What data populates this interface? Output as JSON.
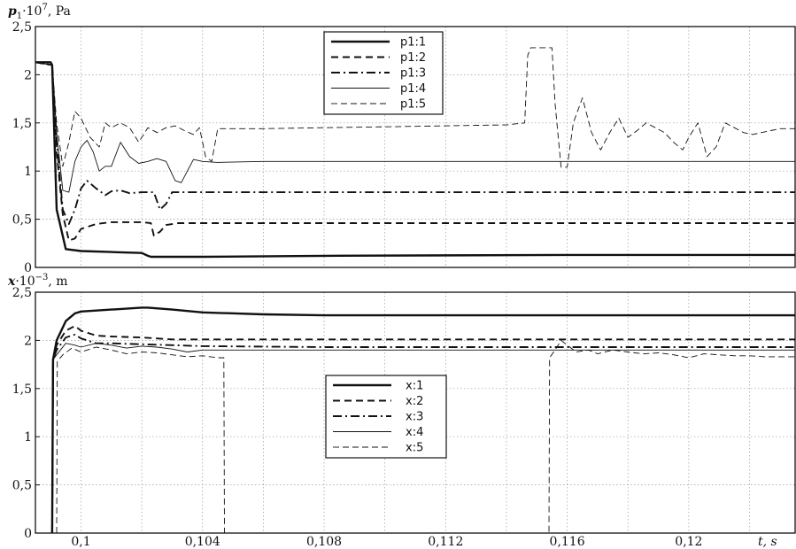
{
  "chart_data": [
    {
      "type": "line",
      "ylabel_var": "p",
      "ylabel_sub": "1",
      "ylabel_rest": "·10",
      "ylabel_exp": "7",
      "ylabel_unit": ", Pa",
      "xlim": [
        0.0985,
        0.1235
      ],
      "ylim": [
        0,
        2.5
      ],
      "yticks": [
        {
          "v": 0,
          "label": "0"
        },
        {
          "v": 0.5,
          "label": "0,5"
        },
        {
          "v": 1,
          "label": "1"
        },
        {
          "v": 1.5,
          "label": "1,5"
        },
        {
          "v": 2,
          "label": "2"
        },
        {
          "v": 2.5,
          "label": "2,5"
        }
      ],
      "xgrid": [
        0.1,
        0.102,
        0.104,
        0.106,
        0.108,
        0.11,
        0.112,
        0.114,
        0.116,
        0.118,
        0.12,
        0.122
      ],
      "xticks": [],
      "grid": true,
      "legend_position": "top-center",
      "series": [
        {
          "name": "p1:1",
          "dash": "",
          "width": 2.4,
          "x": [
            0.0985,
            0.099,
            0.09905,
            0.0992,
            0.0995,
            0.1,
            0.101,
            0.102,
            0.1022,
            0.1023,
            0.104,
            0.108,
            0.116,
            0.1235
          ],
          "y": [
            2.13,
            2.13,
            2.1,
            0.6,
            0.19,
            0.17,
            0.16,
            0.15,
            0.12,
            0.11,
            0.11,
            0.12,
            0.13,
            0.13
          ]
        },
        {
          "name": "p1:2",
          "dash": "8 5",
          "width": 1.9,
          "x": [
            0.0985,
            0.09905,
            0.0992,
            0.0994,
            0.0996,
            0.0998,
            0.1,
            0.1005,
            0.101,
            0.102,
            0.1023,
            0.1024,
            0.1026,
            0.1028,
            0.1032,
            0.104,
            0.108,
            0.116,
            0.1235
          ],
          "y": [
            2.13,
            2.1,
            1.2,
            0.55,
            0.28,
            0.3,
            0.4,
            0.45,
            0.47,
            0.47,
            0.46,
            0.33,
            0.37,
            0.44,
            0.46,
            0.46,
            0.46,
            0.46,
            0.46
          ]
        },
        {
          "name": "p1:3",
          "dash": "10 4 2 4",
          "width": 1.9,
          "x": [
            0.0985,
            0.09905,
            0.0992,
            0.0994,
            0.0996,
            0.0998,
            0.1,
            0.1002,
            0.1005,
            0.1008,
            0.101,
            0.1013,
            0.1016,
            0.102,
            0.1024,
            0.1026,
            0.1028,
            0.103,
            0.1033,
            0.104,
            0.108,
            0.116,
            0.1235
          ],
          "y": [
            2.13,
            2.1,
            1.3,
            0.6,
            0.45,
            0.6,
            0.82,
            0.9,
            0.82,
            0.75,
            0.79,
            0.8,
            0.77,
            0.78,
            0.78,
            0.6,
            0.66,
            0.78,
            0.78,
            0.78,
            0.78,
            0.78,
            0.78
          ]
        },
        {
          "name": "p1:4",
          "dash": "",
          "width": 0.9,
          "x": [
            0.0985,
            0.09905,
            0.0992,
            0.0994,
            0.0996,
            0.0998,
            0.1,
            0.1002,
            0.1004,
            0.1006,
            0.1008,
            0.101,
            0.1013,
            0.1016,
            0.1019,
            0.1022,
            0.1025,
            0.1028,
            0.1031,
            0.1033,
            0.1035,
            0.1037,
            0.104,
            0.1045,
            0.106,
            0.108,
            0.116,
            0.1235
          ],
          "y": [
            2.13,
            2.1,
            1.4,
            0.8,
            0.78,
            1.1,
            1.25,
            1.32,
            1.2,
            1.0,
            1.05,
            1.05,
            1.3,
            1.15,
            1.08,
            1.1,
            1.13,
            1.1,
            0.9,
            0.88,
            1.0,
            1.12,
            1.1,
            1.09,
            1.1,
            1.1,
            1.1,
            1.1
          ]
        },
        {
          "name": "p1:5",
          "dash": "7 4",
          "width": 0.9,
          "x": [
            0.0985,
            0.09905,
            0.0992,
            0.0994,
            0.0996,
            0.0998,
            0.1,
            0.1003,
            0.1006,
            0.1008,
            0.101,
            0.1013,
            0.1016,
            0.1019,
            0.1022,
            0.1025,
            0.1028,
            0.1031,
            0.1034,
            0.1037,
            0.1039,
            0.1041,
            0.1043,
            0.1045,
            0.105,
            0.106,
            0.108,
            0.11,
            0.112,
            0.114,
            0.1146,
            0.1147,
            0.1148,
            0.1153,
            0.1155,
            0.1156,
            0.1158,
            0.116,
            0.1162,
            0.1165,
            0.1168,
            0.1171,
            0.1174,
            0.1177,
            0.118,
            0.1183,
            0.1186,
            0.1189,
            0.1192,
            0.1195,
            0.1198,
            0.12,
            0.1203,
            0.1206,
            0.1209,
            0.1212,
            0.1215,
            0.1218,
            0.1221,
            0.1224,
            0.1227,
            0.123,
            0.1235
          ],
          "y": [
            2.13,
            2.1,
            1.5,
            1.05,
            1.3,
            1.62,
            1.55,
            1.35,
            1.25,
            1.5,
            1.45,
            1.5,
            1.45,
            1.3,
            1.45,
            1.4,
            1.45,
            1.47,
            1.42,
            1.38,
            1.45,
            1.15,
            1.1,
            1.44,
            1.44,
            1.44,
            1.45,
            1.46,
            1.47,
            1.48,
            1.5,
            2.2,
            2.28,
            2.28,
            2.28,
            1.7,
            1.04,
            1.04,
            1.5,
            1.76,
            1.4,
            1.22,
            1.4,
            1.55,
            1.35,
            1.42,
            1.5,
            1.45,
            1.4,
            1.3,
            1.22,
            1.35,
            1.5,
            1.15,
            1.25,
            1.5,
            1.45,
            1.4,
            1.38,
            1.4,
            1.42,
            1.44,
            1.44
          ]
        }
      ]
    },
    {
      "type": "line",
      "ylabel_var": "x",
      "ylabel_sub": "",
      "ylabel_rest": "·10",
      "ylabel_exp": "−3",
      "ylabel_unit": ", m",
      "xlabel": "t, s",
      "xlim": [
        0.0985,
        0.1235
      ],
      "ylim": [
        0,
        2.5
      ],
      "yticks": [
        {
          "v": 0,
          "label": "0"
        },
        {
          "v": 0.5,
          "label": "0,5"
        },
        {
          "v": 1,
          "label": "1"
        },
        {
          "v": 1.5,
          "label": "1,5"
        },
        {
          "v": 2,
          "label": "2"
        },
        {
          "v": 2.5,
          "label": "2,5"
        }
      ],
      "xgrid": [
        0.1,
        0.102,
        0.104,
        0.106,
        0.108,
        0.11,
        0.112,
        0.114,
        0.116,
        0.118,
        0.12,
        0.122
      ],
      "xticks": [
        {
          "v": 0.1,
          "label": "0,1"
        },
        {
          "v": 0.104,
          "label": "0,104"
        },
        {
          "v": 0.108,
          "label": "0,108"
        },
        {
          "v": 0.112,
          "label": "0,112"
        },
        {
          "v": 0.116,
          "label": "0,116"
        },
        {
          "v": 0.12,
          "label": "0,12"
        }
      ],
      "grid": true,
      "legend_position": "center",
      "series": [
        {
          "name": "x:1",
          "dash": "",
          "width": 2.4,
          "x": [
            0.09905,
            0.09908,
            0.0992,
            0.0995,
            0.0998,
            0.1,
            0.101,
            0.102,
            0.1022,
            0.103,
            0.104,
            0.106,
            0.108,
            0.112,
            0.116,
            0.12,
            0.1235
          ],
          "y": [
            0,
            1.8,
            2.0,
            2.2,
            2.28,
            2.3,
            2.32,
            2.34,
            2.34,
            2.32,
            2.29,
            2.27,
            2.26,
            2.26,
            2.26,
            2.26,
            2.26
          ]
        },
        {
          "name": "x:2",
          "dash": "8 5",
          "width": 1.9,
          "x": [
            0.09905,
            0.09908,
            0.0992,
            0.0995,
            0.0998,
            0.1,
            0.1005,
            0.101,
            0.102,
            0.103,
            0.104,
            0.108,
            0.116,
            0.1235
          ],
          "y": [
            0,
            1.8,
            1.95,
            2.1,
            2.15,
            2.1,
            2.05,
            2.04,
            2.03,
            2.01,
            2.01,
            2.01,
            2.01,
            2.01
          ]
        },
        {
          "name": "x:3",
          "dash": "10 4 2 4",
          "width": 1.9,
          "x": [
            0.09905,
            0.09908,
            0.0992,
            0.0995,
            0.0998,
            0.1,
            0.1005,
            0.101,
            0.102,
            0.103,
            0.104,
            0.108,
            0.116,
            0.1235
          ],
          "y": [
            0,
            1.8,
            1.9,
            2.03,
            2.06,
            2.02,
            1.97,
            1.97,
            1.96,
            1.95,
            1.94,
            1.93,
            1.93,
            1.93
          ]
        },
        {
          "name": "x:4",
          "dash": "",
          "width": 0.9,
          "x": [
            0.09905,
            0.09908,
            0.0992,
            0.0995,
            0.0998,
            0.1,
            0.1005,
            0.101,
            0.1015,
            0.102,
            0.1025,
            0.103,
            0.1035,
            0.104,
            0.108,
            0.116,
            0.1235
          ],
          "y": [
            0,
            1.8,
            1.85,
            1.97,
            1.95,
            1.93,
            1.97,
            1.95,
            1.92,
            1.94,
            1.93,
            1.91,
            1.88,
            1.9,
            1.9,
            1.9,
            1.9
          ]
        },
        {
          "name": "x:5",
          "dash": "7 4",
          "width": 0.9,
          "x": [
            0.0992,
            0.09922,
            0.0994,
            0.0997,
            0.1,
            0.1005,
            0.101,
            0.1015,
            0.102,
            0.1025,
            0.103,
            0.1035,
            0.104,
            0.1045,
            0.1047,
            0.10472,
            0.1154,
            0.11542,
            0.1156,
            0.1158,
            0.116,
            0.1163,
            0.1167,
            0.117,
            0.1175,
            0.118,
            0.1185,
            0.119,
            0.1195,
            0.12,
            0.1205,
            0.121,
            0.1215,
            0.122,
            0.1225,
            0.123,
            0.1235
          ],
          "y": [
            0,
            1.78,
            1.85,
            1.92,
            1.88,
            1.93,
            1.9,
            1.86,
            1.88,
            1.87,
            1.85,
            1.83,
            1.84,
            1.82,
            1.82,
            0,
            0,
            1.82,
            1.9,
            2.0,
            1.95,
            1.88,
            1.9,
            1.86,
            1.9,
            1.88,
            1.86,
            1.87,
            1.85,
            1.82,
            1.86,
            1.85,
            1.84,
            1.84,
            1.83,
            1.83,
            1.83
          ]
        }
      ]
    }
  ]
}
